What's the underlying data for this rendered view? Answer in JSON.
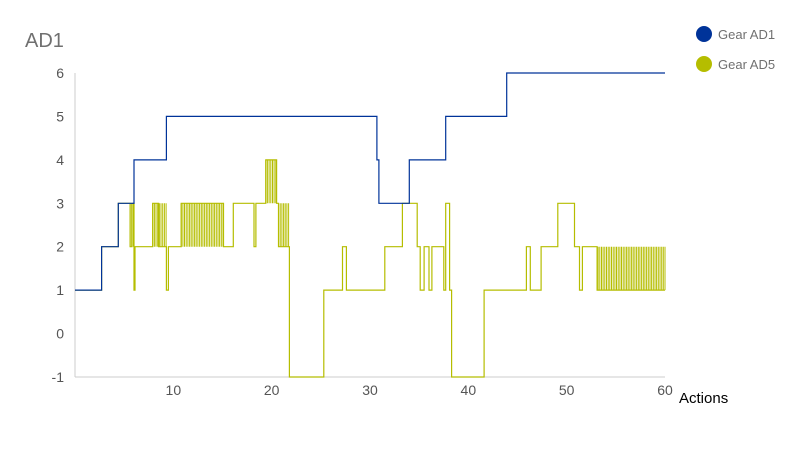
{
  "chart_data": {
    "type": "line",
    "title": "AD1",
    "xlabel": "Actions",
    "ylabel": "",
    "xlim": [
      0,
      60
    ],
    "ylim": [
      -1,
      6
    ],
    "x_ticks": [
      "10",
      "20",
      "30",
      "40",
      "50",
      "60"
    ],
    "y_ticks": [
      "-1",
      "0",
      "1",
      "2",
      "3",
      "4",
      "5",
      "6"
    ],
    "grid": false,
    "legend_position": "top-right",
    "series": [
      {
        "name": "Gear AD1",
        "color": "#003399",
        "step_points": [
          [
            0,
            1
          ],
          [
            2.7,
            2
          ],
          [
            4.4,
            3
          ],
          [
            6,
            4
          ],
          [
            9.3,
            5
          ],
          [
            30.7,
            4
          ],
          [
            30.9,
            3
          ],
          [
            34,
            4
          ],
          [
            37.7,
            5
          ],
          [
            43.9,
            6
          ],
          [
            60,
            6
          ]
        ]
      },
      {
        "name": "Gear AD5",
        "color": "#B5BD00",
        "step_points": [
          [
            0,
            1
          ],
          [
            2.7,
            2
          ],
          [
            4.4,
            3
          ],
          [
            5.6,
            2
          ],
          [
            5.8,
            3
          ],
          [
            6,
            1
          ],
          [
            6.1,
            2
          ],
          [
            7.9,
            3
          ],
          [
            8.5,
            2
          ],
          [
            9.3,
            1
          ],
          [
            9.5,
            2
          ],
          [
            10.8,
            3
          ],
          [
            15.1,
            2
          ],
          [
            16.1,
            3
          ],
          [
            18.2,
            2
          ],
          [
            18.4,
            3
          ],
          [
            19.4,
            4
          ],
          [
            20.5,
            3
          ],
          [
            20.7,
            2
          ],
          [
            21.8,
            -1
          ],
          [
            25.3,
            1
          ],
          [
            27.2,
            2
          ],
          [
            27.6,
            1
          ],
          [
            31,
            1
          ],
          [
            31.5,
            2
          ],
          [
            33.3,
            3
          ],
          [
            34.8,
            2
          ],
          [
            35.1,
            1
          ],
          [
            35.5,
            2
          ],
          [
            36,
            1
          ],
          [
            36.3,
            2
          ],
          [
            37.4,
            2
          ],
          [
            37.5,
            1
          ],
          [
            37.7,
            3
          ],
          [
            38.1,
            1
          ],
          [
            38.3,
            -1
          ],
          [
            41.6,
            1
          ],
          [
            45.9,
            2
          ],
          [
            46.3,
            1
          ],
          [
            46.9,
            1
          ],
          [
            47.4,
            2
          ],
          [
            49.1,
            3
          ],
          [
            50.8,
            2
          ],
          [
            51.3,
            1
          ],
          [
            51.6,
            2
          ],
          [
            53.1,
            1
          ],
          [
            60,
            1
          ]
        ],
        "toggle_ranges": [
          {
            "from": 5.6,
            "to": 6,
            "low": 2,
            "high": 3
          },
          {
            "from": 7.9,
            "to": 9.3,
            "low": 2,
            "high": 3
          },
          {
            "from": 10.8,
            "to": 15.1,
            "low": 2,
            "high": 3
          },
          {
            "from": 19.4,
            "to": 20.5,
            "low": 3,
            "high": 4
          },
          {
            "from": 20.7,
            "to": 21.8,
            "low": 2,
            "high": 3
          },
          {
            "from": 53.2,
            "to": 60,
            "low": 1,
            "high": 2
          }
        ]
      }
    ]
  }
}
